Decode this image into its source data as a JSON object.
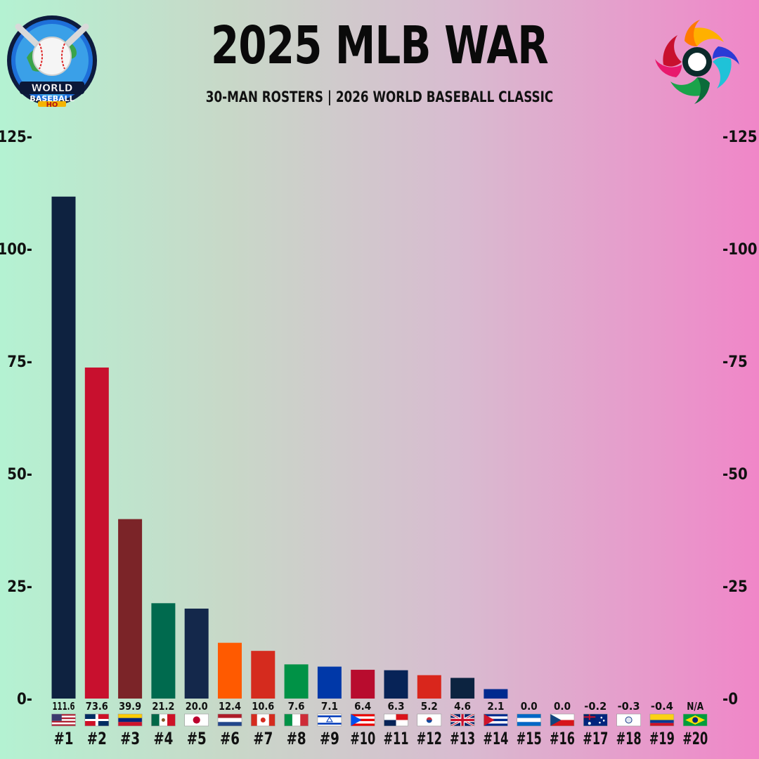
{
  "header": {
    "title": "2025 MLB WAR",
    "subtitle": "30-MAN ROSTERS |  2026 WORLD BASEBALL CLASSIC",
    "logo_left_text": [
      "WORLD",
      "BASEBALL",
      "HQ"
    ]
  },
  "chart_data": {
    "type": "bar",
    "title": "2025 MLB WAR",
    "subtitle": "30-MAN ROSTERS |  2026 WORLD BASEBALL CLASSIC",
    "xlabel": "",
    "ylabel": "",
    "ylim": [
      0,
      125
    ],
    "yticks": [
      0,
      25,
      50,
      75,
      100,
      125
    ],
    "ytick_labels_left": [
      "0-",
      "25-",
      "50-",
      "75-",
      "100-",
      "125-"
    ],
    "ytick_labels_right": [
      "-0",
      "-25",
      "-50",
      "-75",
      "-100",
      "-125"
    ],
    "grid": false,
    "categories": [
      "#1",
      "#2",
      "#3",
      "#4",
      "#5",
      "#6",
      "#7",
      "#8",
      "#9",
      "#10",
      "#11",
      "#12",
      "#13",
      "#14",
      "#15",
      "#16",
      "#17",
      "#18",
      "#19",
      "#20"
    ],
    "values": [
      111.6,
      73.6,
      39.9,
      21.2,
      20.0,
      12.4,
      10.6,
      7.6,
      7.1,
      6.4,
      6.3,
      5.2,
      4.6,
      2.1,
      0.0,
      0.0,
      -0.2,
      -0.3,
      -0.4,
      null
    ],
    "value_labels": [
      "111.6",
      "73.6",
      "39.9",
      "21.2",
      "20.0",
      "12.4",
      "10.6",
      "7.6",
      "7.1",
      "6.4",
      "6.3",
      "5.2",
      "4.6",
      "2.1",
      "0.0",
      "0.0",
      "-0.2",
      "-0.3",
      "-0.4",
      "N/A"
    ],
    "bar_colors": [
      "#0e2240",
      "#c8102e",
      "#7b2428",
      "#006a4e",
      "#14284b",
      "#ff5a00",
      "#d52b1e",
      "#009246",
      "#0038a8",
      "#b80c2e",
      "#072357",
      "#d9261c",
      "#0c2340",
      "#002a8f",
      "#0067c6",
      "#11457e",
      "#00247d",
      "#fe0000",
      "#fcd116",
      "#009c3b"
    ],
    "flags": [
      "usa",
      "dominican-republic",
      "venezuela",
      "mexico",
      "japan",
      "netherlands",
      "canada",
      "italy",
      "israel",
      "puerto-rico",
      "panama",
      "south-korea",
      "great-britain",
      "cuba",
      "nicaragua",
      "czechia",
      "australia",
      "chinese-taipei",
      "colombia",
      "brazil"
    ]
  }
}
